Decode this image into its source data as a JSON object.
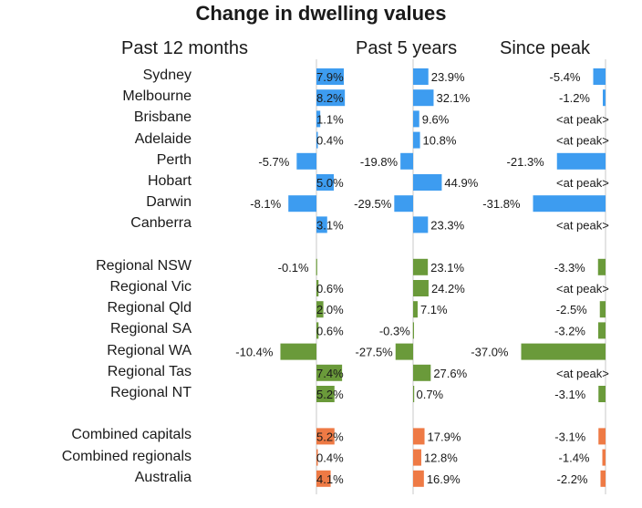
{
  "chart_data": {
    "type": "bar",
    "title": "Change in dwelling values",
    "panels": [
      "Past 12 months",
      "Past 5 years",
      "Since peak"
    ],
    "colors": {
      "capitals": "#3d9cf0",
      "regionals": "#6a9a3a",
      "combined": "#ee7a45",
      "zero_line": "#c8c8c8"
    },
    "groups": [
      {
        "name": "capitals",
        "rows": [
          {
            "region": "Sydney",
            "past_12_months": 7.9,
            "past_5_years": 23.9,
            "since_peak": -5.4,
            "labels": [
              "7.9%",
              "23.9%",
              "-5.4%"
            ]
          },
          {
            "region": "Melbourne",
            "past_12_months": 8.2,
            "past_5_years": 32.1,
            "since_peak": -1.2,
            "labels": [
              "8.2%",
              "32.1%",
              "-1.2%"
            ]
          },
          {
            "region": "Brisbane",
            "past_12_months": 1.1,
            "past_5_years": 9.6,
            "since_peak": 0,
            "labels": [
              "1.1%",
              "9.6%",
              "<at peak>"
            ]
          },
          {
            "region": "Adelaide",
            "past_12_months": 0.4,
            "past_5_years": 10.8,
            "since_peak": 0,
            "labels": [
              "0.4%",
              "10.8%",
              "<at peak>"
            ]
          },
          {
            "region": "Perth",
            "past_12_months": -5.7,
            "past_5_years": -19.8,
            "since_peak": -21.3,
            "labels": [
              "-5.7%",
              "-19.8%",
              "-21.3%"
            ]
          },
          {
            "region": "Hobart",
            "past_12_months": 5.0,
            "past_5_years": 44.9,
            "since_peak": 0,
            "labels": [
              "5.0%",
              "44.9%",
              "<at peak>"
            ]
          },
          {
            "region": "Darwin",
            "past_12_months": -8.1,
            "past_5_years": -29.5,
            "since_peak": -31.8,
            "labels": [
              "-8.1%",
              "-29.5%",
              "-31.8%"
            ]
          },
          {
            "region": "Canberra",
            "past_12_months": 3.1,
            "past_5_years": 23.3,
            "since_peak": 0,
            "labels": [
              "3.1%",
              "23.3%",
              "<at peak>"
            ]
          }
        ]
      },
      {
        "name": "regionals",
        "rows": [
          {
            "region": "Regional NSW",
            "past_12_months": -0.1,
            "past_5_years": 23.1,
            "since_peak": -3.3,
            "labels": [
              "-0.1%",
              "23.1%",
              "-3.3%"
            ]
          },
          {
            "region": "Regional Vic",
            "past_12_months": 0.6,
            "past_5_years": 24.2,
            "since_peak": 0,
            "labels": [
              "0.6%",
              "24.2%",
              "<at peak>"
            ]
          },
          {
            "region": "Regional Qld",
            "past_12_months": 2.0,
            "past_5_years": 7.1,
            "since_peak": -2.5,
            "labels": [
              "2.0%",
              "7.1%",
              "-2.5%"
            ]
          },
          {
            "region": "Regional SA",
            "past_12_months": 0.6,
            "past_5_years": -0.3,
            "since_peak": -3.2,
            "labels": [
              "0.6%",
              "-0.3%",
              "-3.2%"
            ]
          },
          {
            "region": "Regional WA",
            "past_12_months": -10.4,
            "past_5_years": -27.5,
            "since_peak": -37.0,
            "labels": [
              "-10.4%",
              "-27.5%",
              "-37.0%"
            ]
          },
          {
            "region": "Regional Tas",
            "past_12_months": 7.4,
            "past_5_years": 27.6,
            "since_peak": 0,
            "labels": [
              "7.4%",
              "27.6%",
              "<at peak>"
            ]
          },
          {
            "region": "Regional NT",
            "past_12_months": 5.2,
            "past_5_years": 0.7,
            "since_peak": -3.1,
            "labels": [
              "5.2%",
              "0.7%",
              "-3.1%"
            ]
          }
        ]
      },
      {
        "name": "combined",
        "rows": [
          {
            "region": "Combined capitals",
            "past_12_months": 5.2,
            "past_5_years": 17.9,
            "since_peak": -3.1,
            "labels": [
              "5.2%",
              "17.9%",
              "-3.1%"
            ]
          },
          {
            "region": "Combined regionals",
            "past_12_months": 0.4,
            "past_5_years": 12.8,
            "since_peak": -1.4,
            "labels": [
              "0.4%",
              "12.8%",
              "-1.4%"
            ]
          },
          {
            "region": "Australia",
            "past_12_months": 4.1,
            "past_5_years": 16.9,
            "since_peak": -2.2,
            "labels": [
              "4.1%",
              "16.9%",
              "-2.2%"
            ]
          }
        ]
      }
    ]
  }
}
